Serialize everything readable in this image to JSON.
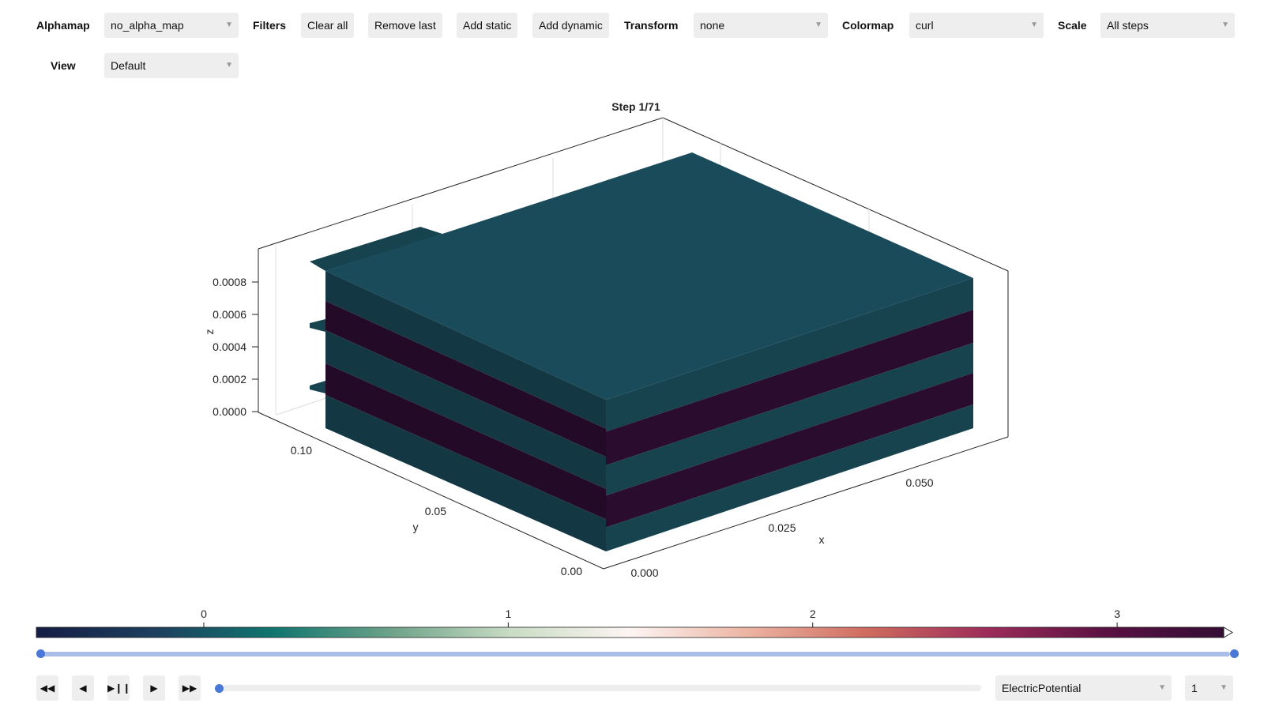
{
  "toolbar": {
    "alphamap_label": "Alphamap",
    "alphamap_value": "no_alpha_map",
    "filters_label": "Filters",
    "clear_all": "Clear all",
    "remove_last": "Remove last",
    "add_static": "Add static",
    "add_dynamic": "Add dynamic",
    "transform_label": "Transform",
    "transform_value": "none",
    "colormap_label": "Colormap",
    "colormap_value": "curl",
    "scale_label": "Scale",
    "scale_value": "All steps",
    "view_label": "View",
    "view_value": "Default"
  },
  "plot": {
    "title": "Step 1/71",
    "z_axis": {
      "label": "z",
      "ticks": [
        "0.0000",
        "0.0002",
        "0.0004",
        "0.0006",
        "0.0008"
      ]
    },
    "y_axis": {
      "label": "y",
      "ticks": [
        "0.00",
        "0.05",
        "0.10"
      ]
    },
    "x_axis": {
      "label": "x",
      "ticks": [
        "0.000",
        "0.025",
        "0.050"
      ]
    },
    "colors": {
      "teal_top": "#1a4b5a",
      "teal_side": "#17434f",
      "teal_front": "#133844",
      "dark_purple": "#2a0d2e",
      "dark_purple_front": "#230a27",
      "axis": "#222222",
      "grid": "#dddddd"
    }
  },
  "colorbar": {
    "ticks": [
      "0",
      "1",
      "2",
      "3"
    ],
    "tick_values": [
      0,
      1,
      2,
      3
    ],
    "min": -0.55,
    "max": 3.35,
    "stops": [
      "#151d44",
      "#1d3f5e",
      "#10766f",
      "#6ea38a",
      "#c9dcc4",
      "#fdf5f3",
      "#ecb3a1",
      "#cf6b5e",
      "#9e2c5a",
      "#5a1142",
      "#340d35"
    ]
  },
  "controls": {
    "range_start": 0,
    "range_end": 1,
    "step_fraction": 0,
    "field_value": "ElectricPotential",
    "component_value": "1",
    "icons": [
      "rewind-icon",
      "step-back-icon",
      "play-pause-icon",
      "play-icon",
      "fast-forward-icon"
    ]
  }
}
